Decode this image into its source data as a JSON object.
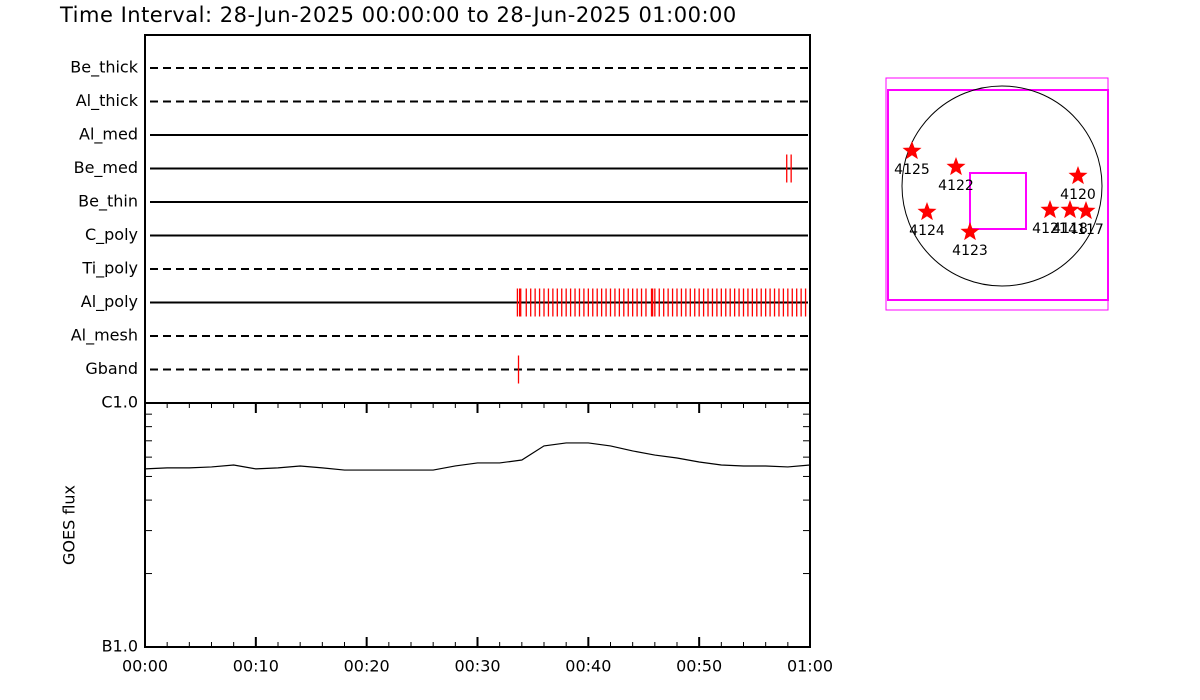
{
  "title": "Time Interval: 28-Jun-2025 00:00:00 to 28-Jun-2025 01:00:00",
  "chart_data": [
    {
      "type": "timeline",
      "xlim": [
        0,
        60
      ],
      "color": "#ff0000",
      "rows": [
        {
          "name": "Be_thick",
          "style": "dashed",
          "obs": []
        },
        {
          "name": "Al_thick",
          "style": "dashed",
          "obs": []
        },
        {
          "name": "Al_med",
          "style": "solid",
          "obs": []
        },
        {
          "name": "Be_med",
          "style": "solid",
          "obs": [
            57.9,
            58.3
          ]
        },
        {
          "name": "Be_thin",
          "style": "solid",
          "obs": []
        },
        {
          "name": "C_poly",
          "style": "solid",
          "obs": []
        },
        {
          "name": "Ti_poly",
          "style": "dashed",
          "obs": []
        },
        {
          "name": "Al_poly",
          "style": "solid",
          "obs": [
            33.6,
            33.8,
            33.9,
            34.4,
            34.8,
            35.2,
            35.6,
            36.0,
            36.4,
            36.8,
            37.2,
            37.6,
            38.0,
            38.4,
            38.8,
            39.2,
            39.6,
            40.0,
            40.4,
            40.8,
            41.2,
            41.6,
            42.0,
            42.4,
            42.8,
            43.2,
            43.6,
            44.0,
            44.4,
            44.8,
            45.2,
            45.7,
            45.8,
            46.0,
            46.4,
            46.8,
            47.2,
            47.6,
            48.0,
            48.4,
            48.8,
            49.2,
            49.6,
            50.0,
            50.4,
            50.8,
            51.2,
            51.6,
            52.0,
            52.4,
            52.8,
            53.2,
            53.6,
            54.0,
            54.4,
            54.8,
            55.2,
            55.6,
            56.0,
            56.4,
            56.8,
            57.2,
            57.6,
            58.0,
            58.4,
            58.8,
            59.2,
            59.6
          ]
        },
        {
          "name": "Al_mesh",
          "style": "dashed",
          "obs": []
        },
        {
          "name": "Gband",
          "style": "dashed",
          "obs": [
            33.7
          ]
        }
      ]
    },
    {
      "type": "line",
      "ylabel": "GOES flux",
      "log": true,
      "xlim": [
        0,
        60
      ],
      "xticks": [
        {
          "value": 0,
          "label": "00:00"
        },
        {
          "value": 10,
          "label": "00:10"
        },
        {
          "value": 20,
          "label": "00:20"
        },
        {
          "value": 30,
          "label": "00:30"
        },
        {
          "value": 40,
          "label": "00:40"
        },
        {
          "value": 50,
          "label": "00:50"
        },
        {
          "value": 60,
          "label": "01:00"
        }
      ],
      "ylim": [
        1e-07,
        1e-06
      ],
      "yticks": [
        {
          "value": 1e-07,
          "label": "B1.0"
        },
        {
          "value": 1e-06,
          "label": "C1.0"
        }
      ],
      "yminor_ticks": [
        2e-07,
        3e-07,
        4e-07,
        5e-07,
        6e-07,
        7e-07,
        8e-07,
        9e-07
      ],
      "x": [
        0,
        2,
        4,
        6,
        8,
        10,
        12,
        14,
        16,
        18,
        20,
        22,
        24,
        26,
        28,
        30,
        32,
        34,
        36,
        38,
        40,
        42,
        44,
        46,
        48,
        50,
        52,
        54,
        56,
        58,
        60
      ],
      "series": [
        {
          "color": "#000000",
          "values": [
            5.37e-07,
            5.42e-07,
            5.42e-07,
            5.47e-07,
            5.57e-07,
            5.37e-07,
            5.42e-07,
            5.52e-07,
            5.42e-07,
            5.31e-07,
            5.31e-07,
            5.31e-07,
            5.31e-07,
            5.31e-07,
            5.52e-07,
            5.68e-07,
            5.68e-07,
            5.84e-07,
            6.67e-07,
            6.86e-07,
            6.86e-07,
            6.67e-07,
            6.36e-07,
            6.12e-07,
            5.95e-07,
            5.73e-07,
            5.57e-07,
            5.52e-07,
            5.52e-07,
            5.47e-07,
            5.57e-07
          ]
        }
      ]
    }
  ],
  "map": {
    "regions": [
      "4125",
      "4122",
      "4120",
      "4124",
      "4123",
      "4121",
      "4118",
      "4117"
    ]
  }
}
